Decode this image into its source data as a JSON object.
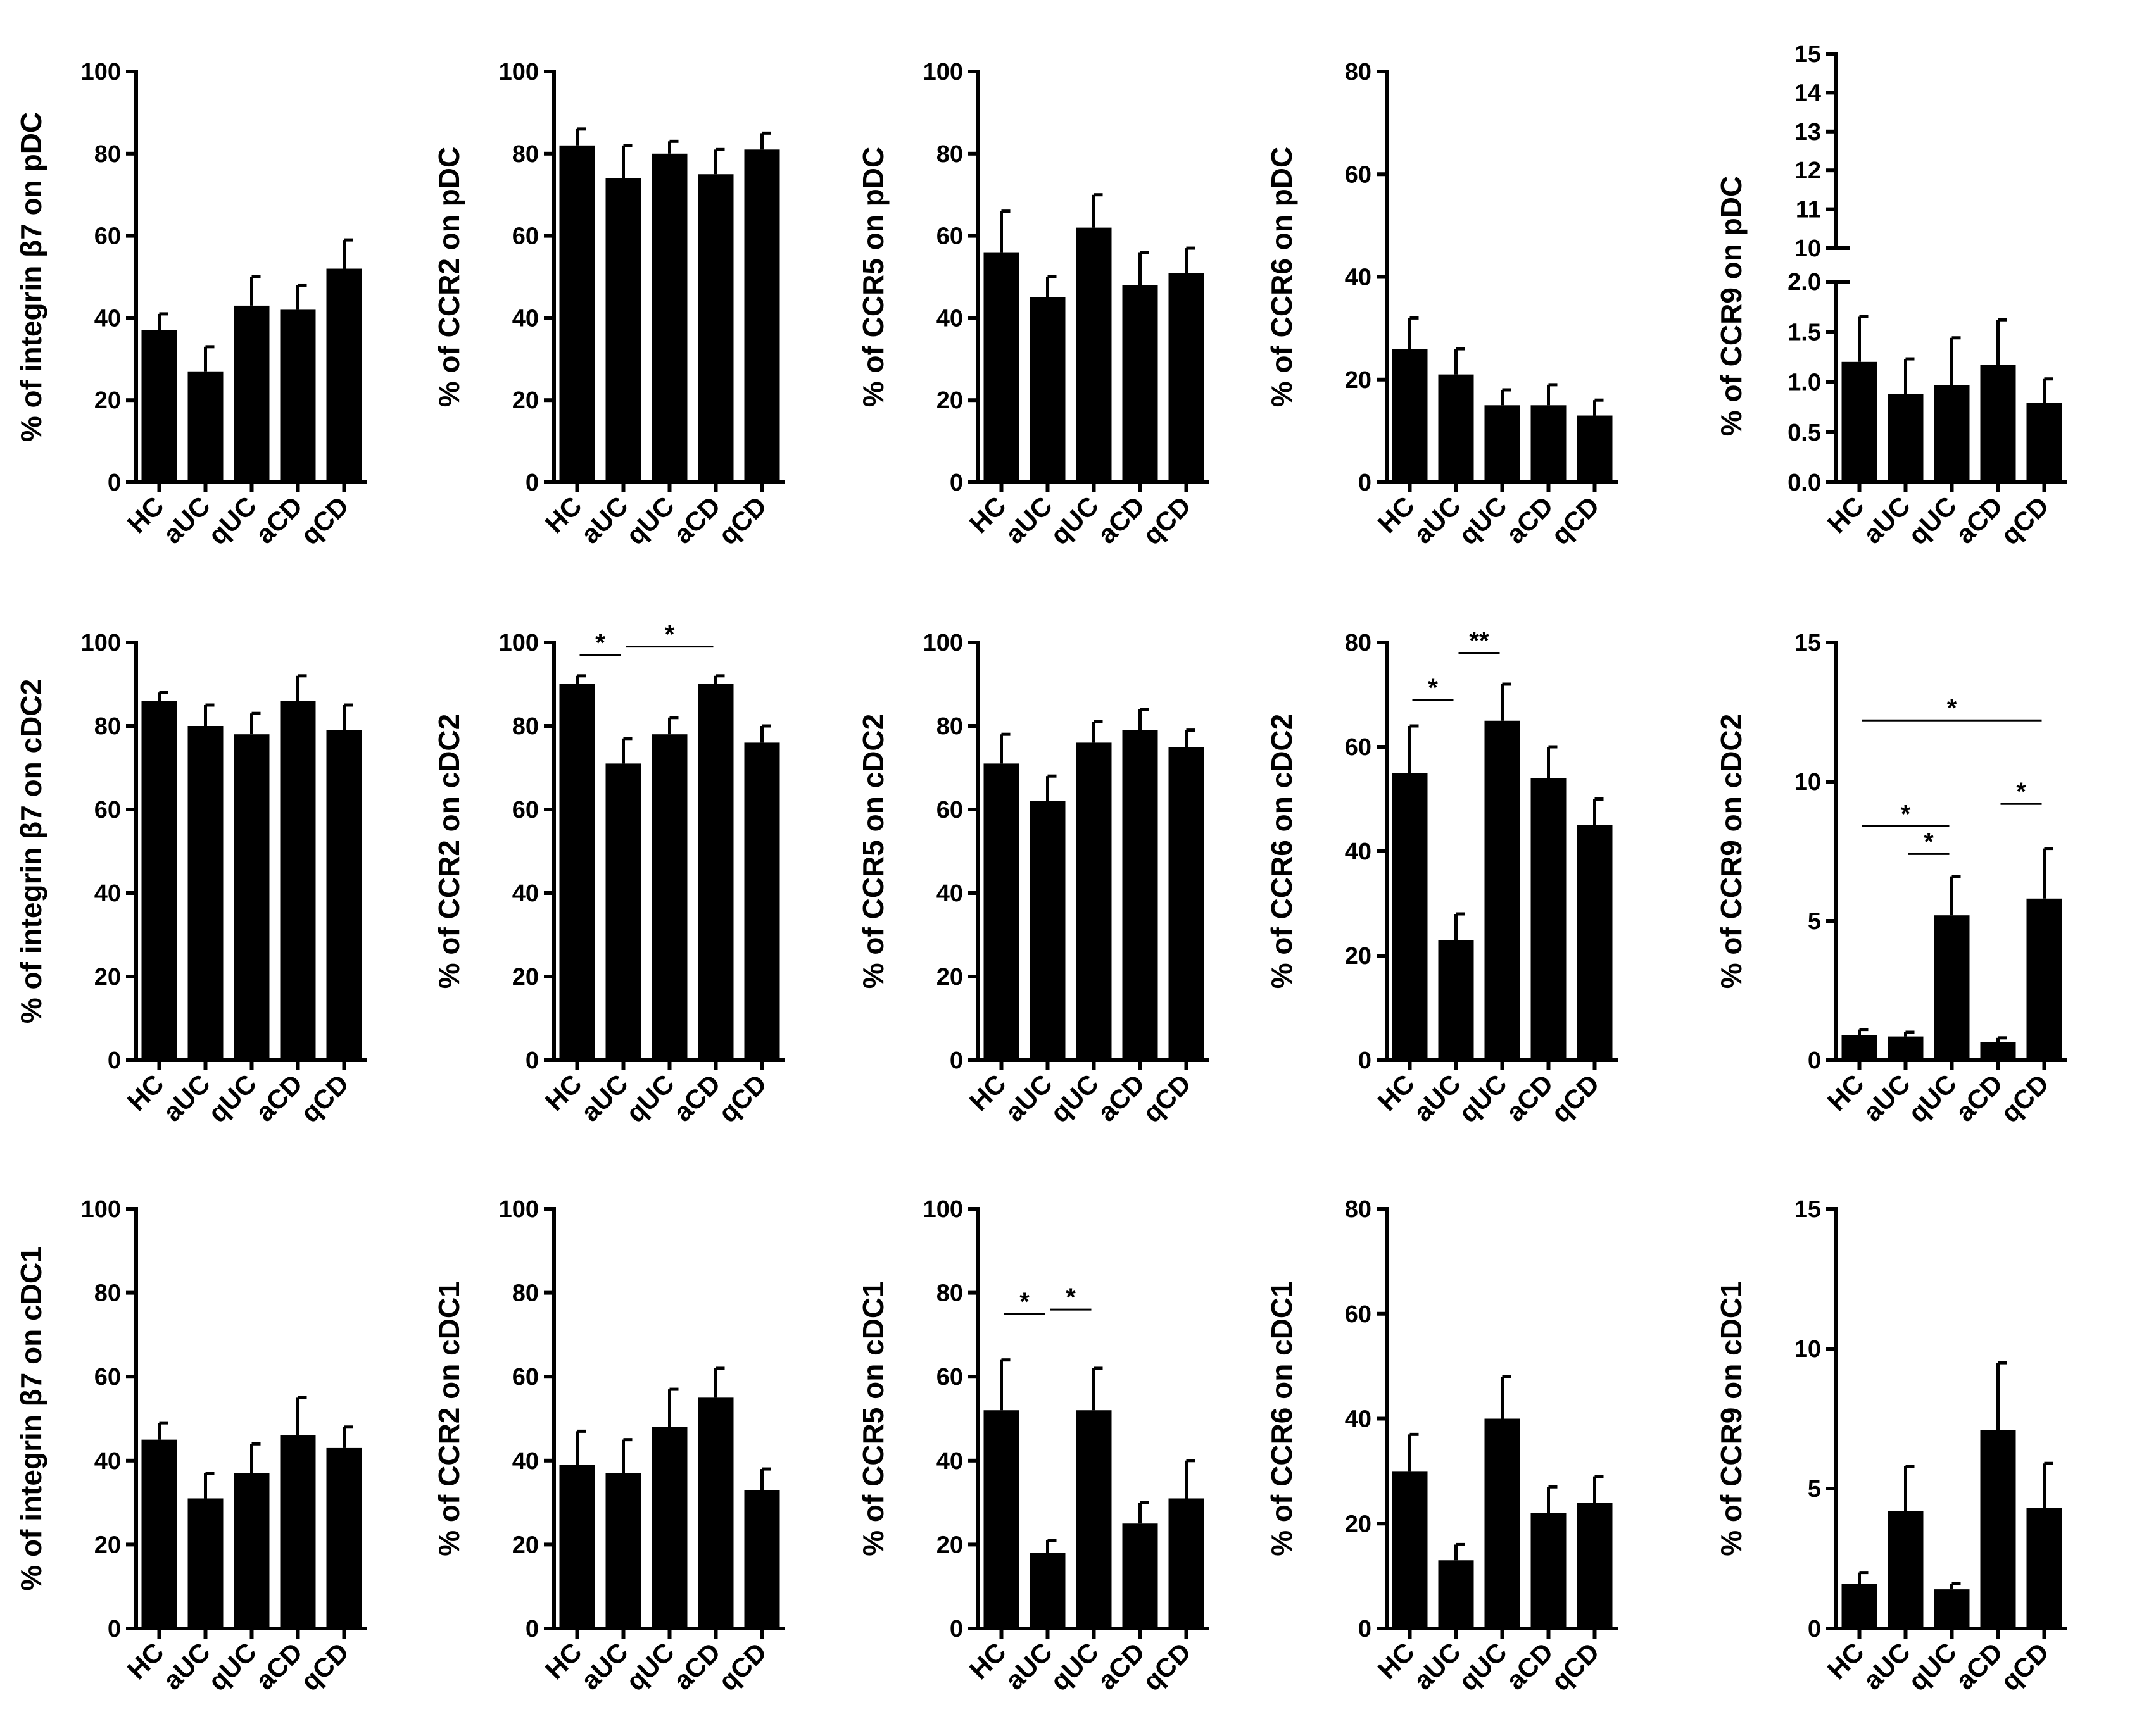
{
  "chart_data": [
    {
      "id": "p1",
      "type": "bar",
      "ylabel": "% of integrin β7 on pDC",
      "categories": [
        "HC",
        "aUC",
        "qUC",
        "aCD",
        "qCD"
      ],
      "values": [
        37,
        27,
        43,
        42,
        52
      ],
      "errors": [
        4,
        6,
        7,
        6,
        7
      ],
      "ylim": [
        0,
        100
      ],
      "yticks": [
        "0",
        "20",
        "40",
        "60",
        "80",
        "100"
      ],
      "significance": []
    },
    {
      "id": "p2",
      "type": "bar",
      "ylabel": "% of CCR2 on pDC",
      "categories": [
        "HC",
        "aUC",
        "qUC",
        "aCD",
        "qCD"
      ],
      "values": [
        82,
        74,
        80,
        75,
        81
      ],
      "errors": [
        4,
        8,
        3,
        6,
        4
      ],
      "ylim": [
        0,
        100
      ],
      "yticks": [
        "0",
        "20",
        "40",
        "60",
        "80",
        "100"
      ],
      "significance": []
    },
    {
      "id": "p3",
      "type": "bar",
      "ylabel": "% of CCR5 on pDC",
      "categories": [
        "HC",
        "aUC",
        "qUC",
        "aCD",
        "qCD"
      ],
      "values": [
        56,
        45,
        62,
        48,
        51
      ],
      "errors": [
        10,
        5,
        8,
        8,
        6
      ],
      "ylim": [
        0,
        100
      ],
      "yticks": [
        "0",
        "20",
        "40",
        "60",
        "80",
        "100"
      ],
      "significance": []
    },
    {
      "id": "p4",
      "type": "bar",
      "ylabel": "% of CCR6 on pDC",
      "categories": [
        "HC",
        "aUC",
        "qUC",
        "aCD",
        "qCD"
      ],
      "values": [
        26,
        21,
        15,
        15,
        13
      ],
      "errors": [
        6,
        5,
        3,
        4,
        3
      ],
      "ylim": [
        0,
        80
      ],
      "yticks": [
        "0",
        "20",
        "40",
        "60",
        "80"
      ],
      "significance": []
    },
    {
      "id": "p5",
      "type": "bar",
      "ylabel": "% of CCR9 on pDC",
      "categories": [
        "HC",
        "aUC",
        "qUC",
        "aCD",
        "qCD"
      ],
      "values": [
        1.2,
        0.88,
        0.97,
        1.17,
        0.79
      ],
      "errors": [
        0.45,
        0.35,
        0.47,
        0.45,
        0.24
      ],
      "ylim": [
        0,
        2.0
      ],
      "yticks": [
        "0.0",
        "0.5",
        "1.0",
        "1.5",
        "2.0"
      ],
      "axis_break": {
        "upper_range": [
          10,
          15
        ],
        "upper_ticks": [
          "10",
          "11",
          "12",
          "13",
          "14",
          "15"
        ]
      },
      "significance": []
    },
    {
      "id": "c2_1",
      "type": "bar",
      "ylabel": "% of integrin β7 on cDC2",
      "categories": [
        "HC",
        "aUC",
        "qUC",
        "aCD",
        "qCD"
      ],
      "values": [
        86,
        80,
        78,
        86,
        79
      ],
      "errors": [
        2,
        5,
        5,
        6,
        6
      ],
      "ylim": [
        0,
        100
      ],
      "yticks": [
        "0",
        "20",
        "40",
        "60",
        "80",
        "100"
      ],
      "significance": []
    },
    {
      "id": "c2_2",
      "type": "bar",
      "ylabel": "% of CCR2 on cDC2",
      "categories": [
        "HC",
        "aUC",
        "qUC",
        "aCD",
        "qCD"
      ],
      "values": [
        90,
        71,
        78,
        90,
        76
      ],
      "errors": [
        2,
        6,
        4,
        2,
        4
      ],
      "ylim": [
        0,
        100
      ],
      "yticks": [
        "0",
        "20",
        "40",
        "60",
        "80",
        "100"
      ],
      "significance": [
        {
          "from": 0,
          "to": 1,
          "label": "*",
          "y": 97
        },
        {
          "from": 1,
          "to": 3,
          "label": "*",
          "y": 99
        }
      ]
    },
    {
      "id": "c2_3",
      "type": "bar",
      "ylabel": "% of CCR5 on cDC2",
      "categories": [
        "HC",
        "aUC",
        "qUC",
        "aCD",
        "qCD"
      ],
      "values": [
        71,
        62,
        76,
        79,
        75
      ],
      "errors": [
        7,
        6,
        5,
        5,
        4
      ],
      "ylim": [
        0,
        100
      ],
      "yticks": [
        "0",
        "20",
        "40",
        "60",
        "80",
        "100"
      ],
      "significance": []
    },
    {
      "id": "c2_4",
      "type": "bar",
      "ylabel": "% of CCR6 on cDC2",
      "categories": [
        "HC",
        "aUC",
        "qUC",
        "aCD",
        "qCD"
      ],
      "values": [
        55,
        23,
        65,
        54,
        45
      ],
      "errors": [
        9,
        5,
        7,
        6,
        5
      ],
      "ylim": [
        0,
        80
      ],
      "yticks": [
        "0",
        "20",
        "40",
        "60",
        "80"
      ],
      "significance": [
        {
          "from": 0,
          "to": 1,
          "label": "*",
          "y": 69
        },
        {
          "from": 1,
          "to": 2,
          "label": "**",
          "y": 78
        }
      ]
    },
    {
      "id": "c2_5",
      "type": "bar",
      "ylabel": "% of CCR9 on cDC2",
      "categories": [
        "HC",
        "aUC",
        "qUC",
        "aCD",
        "qCD"
      ],
      "values": [
        0.9,
        0.85,
        5.2,
        0.65,
        5.8
      ],
      "errors": [
        0.2,
        0.15,
        1.4,
        0.15,
        1.8
      ],
      "ylim": [
        0,
        15
      ],
      "yticks": [
        "0",
        "5",
        "10",
        "15"
      ],
      "significance": [
        {
          "from": 0,
          "to": 4,
          "label": "*",
          "y": 12.2
        },
        {
          "from": 0,
          "to": 2,
          "label": "*",
          "y": 8.4
        },
        {
          "from": 1,
          "to": 2,
          "label": "*",
          "y": 7.4
        },
        {
          "from": 3,
          "to": 4,
          "label": "*",
          "y": 9.2
        }
      ]
    },
    {
      "id": "c1_1",
      "type": "bar",
      "ylabel": "% of integrin β7 on cDC1",
      "categories": [
        "HC",
        "aUC",
        "qUC",
        "aCD",
        "qCD"
      ],
      "values": [
        45,
        31,
        37,
        46,
        43
      ],
      "errors": [
        4,
        6,
        7,
        9,
        5
      ],
      "ylim": [
        0,
        100
      ],
      "yticks": [
        "0",
        "20",
        "40",
        "60",
        "80",
        "100"
      ],
      "significance": []
    },
    {
      "id": "c1_2",
      "type": "bar",
      "ylabel": "% of CCR2 on cDC1",
      "categories": [
        "HC",
        "aUC",
        "qUC",
        "aCD",
        "qCD"
      ],
      "values": [
        39,
        37,
        48,
        55,
        33
      ],
      "errors": [
        8,
        8,
        9,
        7,
        5
      ],
      "ylim": [
        0,
        100
      ],
      "yticks": [
        "0",
        "20",
        "40",
        "60",
        "80",
        "100"
      ],
      "significance": []
    },
    {
      "id": "c1_3",
      "type": "bar",
      "ylabel": "% of CCR5 on cDC1",
      "categories": [
        "HC",
        "aUC",
        "qUC",
        "aCD",
        "qCD"
      ],
      "values": [
        52,
        18,
        52,
        25,
        31
      ],
      "errors": [
        12,
        3,
        10,
        5,
        9
      ],
      "ylim": [
        0,
        100
      ],
      "yticks": [
        "0",
        "20",
        "40",
        "60",
        "80",
        "100"
      ],
      "significance": [
        {
          "from": 0,
          "to": 1,
          "label": "*",
          "y": 75
        },
        {
          "from": 1,
          "to": 2,
          "label": "*",
          "y": 76
        }
      ]
    },
    {
      "id": "c1_4",
      "type": "bar",
      "ylabel": "% of CCR6 on cDC1",
      "categories": [
        "HC",
        "aUC",
        "qUC",
        "aCD",
        "qCD"
      ],
      "values": [
        30,
        13,
        40,
        22,
        24
      ],
      "errors": [
        7,
        3,
        8,
        5,
        5
      ],
      "ylim": [
        0,
        80
      ],
      "yticks": [
        "0",
        "20",
        "40",
        "60",
        "80"
      ],
      "significance": []
    },
    {
      "id": "c1_5",
      "type": "bar",
      "ylabel": "% of CCR9 on cDC1",
      "categories": [
        "HC",
        "aUC",
        "qUC",
        "aCD",
        "qCD"
      ],
      "values": [
        1.6,
        4.2,
        1.4,
        7.1,
        4.3
      ],
      "errors": [
        0.4,
        1.6,
        0.2,
        2.4,
        1.6
      ],
      "ylim": [
        0,
        15
      ],
      "yticks": [
        "0",
        "5",
        "10",
        "15"
      ],
      "significance": []
    }
  ]
}
